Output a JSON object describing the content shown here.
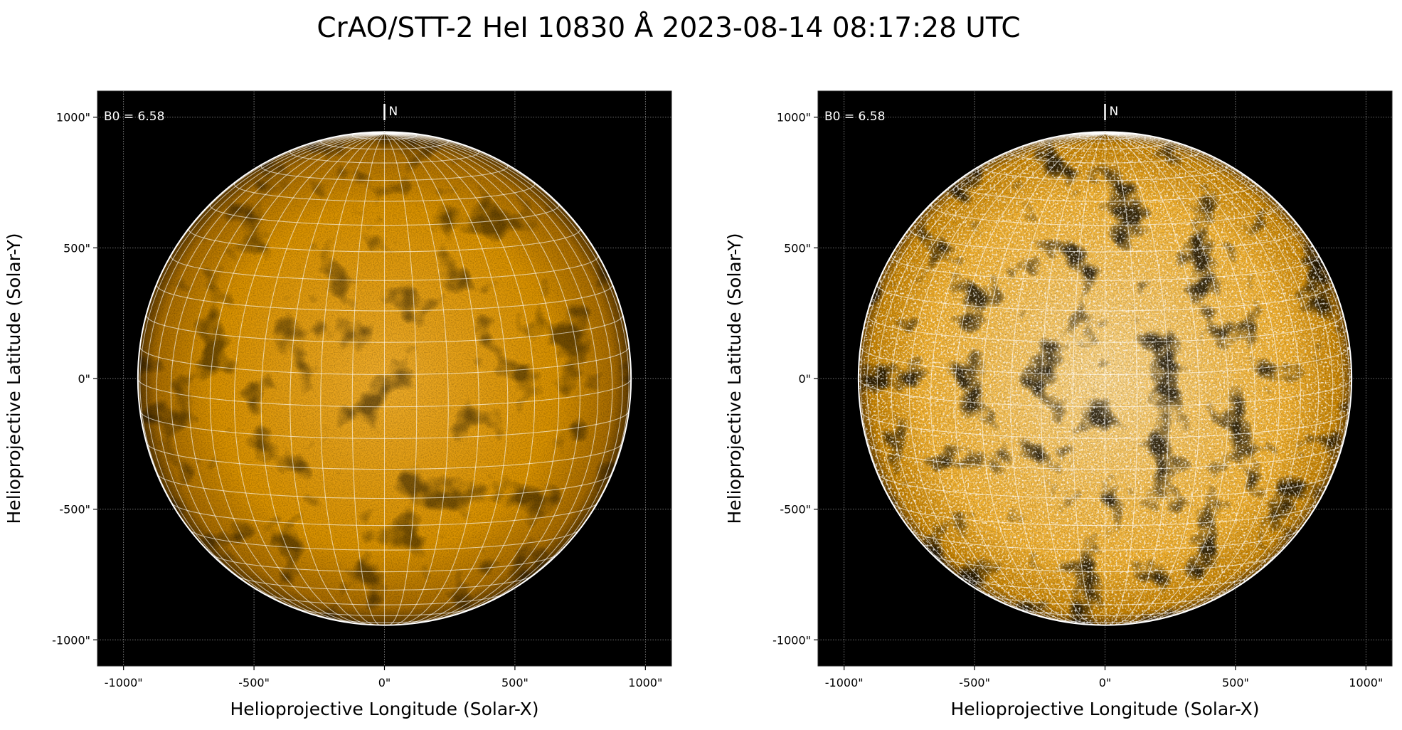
{
  "chart_data": {
    "type": "image",
    "title": "CrAO/STT-2 HeI 10830 Å 2023-08-14 08:17:28 UTC",
    "panels": [
      {
        "xlabel": "Helioprojective Longitude (Solar-X)",
        "ylabel": "Helioprojective Latitude (Solar-Y)",
        "xlim": [
          -1100,
          1100
        ],
        "ylim": [
          -1100,
          1100
        ],
        "xticks": [
          -1000,
          -500,
          0,
          500,
          1000
        ],
        "yticks": [
          -1000,
          -500,
          0,
          500,
          1000
        ],
        "xtick_labels": [
          "-1000\"",
          "-500\"",
          "0\"",
          "500\"",
          "1000\""
        ],
        "ytick_labels": [
          "-1000\"",
          "-500\"",
          "0\"",
          "500\"",
          "1000\""
        ],
        "annotation": "B0 = 6.58",
        "north_label": "N",
        "grid": true,
        "solar_radius_arcsec": 945,
        "b0_deg": 6.58,
        "grid_spacing_deg": 7.5,
        "colormap": "orange",
        "contrast": "normal"
      },
      {
        "xlabel": "Helioprojective Longitude (Solar-X)",
        "ylabel": "Helioprojective Latitude (Solar-Y)",
        "xlim": [
          -1100,
          1100
        ],
        "ylim": [
          -1100,
          1100
        ],
        "xticks": [
          -1000,
          -500,
          0,
          500,
          1000
        ],
        "yticks": [
          -1000,
          -500,
          0,
          500,
          1000
        ],
        "xtick_labels": [
          "-1000\"",
          "-500\"",
          "0\"",
          "500\"",
          "1000\""
        ],
        "ytick_labels": [
          "-1000\"",
          "-500\"",
          "0\"",
          "500\"",
          "1000\""
        ],
        "annotation": "B0 = 6.58",
        "north_label": "N",
        "grid": true,
        "solar_radius_arcsec": 945,
        "b0_deg": 6.58,
        "grid_spacing_deg": 7.5,
        "colormap": "orange",
        "contrast": "enhanced"
      }
    ],
    "colors": {
      "background": "#000000",
      "disk": "#e29a00",
      "grid": "#ffffff"
    }
  }
}
